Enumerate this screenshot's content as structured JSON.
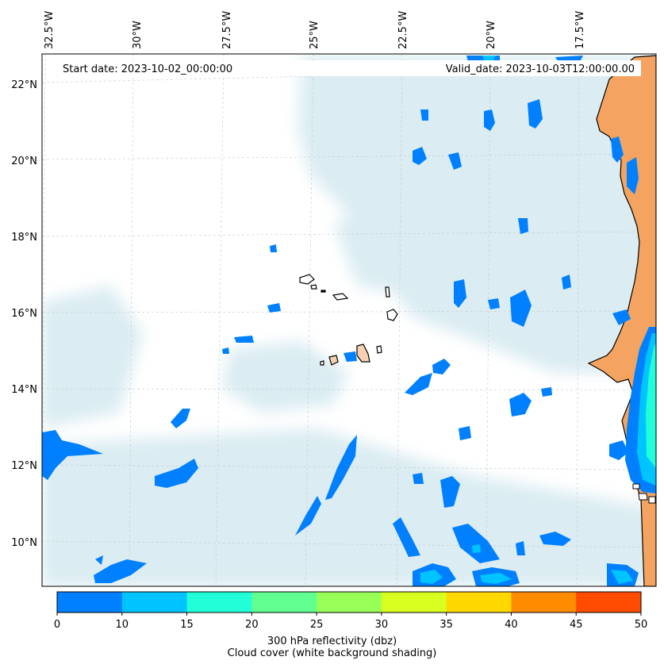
{
  "header": {
    "start_date": "Start date: 2023-10-02_00:00:00",
    "valid_date": "Valid_date: 2023-10-03T12:00:00.00"
  },
  "map": {
    "longitude_labels": [
      "32.5°W",
      "30°W",
      "27.5°W",
      "25°W",
      "22.5°W",
      "20°W",
      "17.5°W"
    ],
    "latitude_labels": [
      "22°N",
      "20°N",
      "18°N",
      "16°N",
      "14°N",
      "12°N",
      "10°N"
    ],
    "land_color": "#f4a460",
    "ocean_color": "#ffffff",
    "cloud_shading_color": "#cfe6ee"
  },
  "colorbar": {
    "levels": [
      "0",
      "10",
      "15",
      "20",
      "25",
      "30",
      "35",
      "40",
      "45",
      "50"
    ],
    "colors": [
      "#0080ff",
      "#00c4ff",
      "#20ffd8",
      "#60ff90",
      "#98ff58",
      "#d8ff20",
      "#ffd800",
      "#ff8c00",
      "#ff4c00"
    ],
    "label_line1": "300 hPa reflectivity (dbz)",
    "label_line2": "Cloud cover (white background shading)"
  }
}
